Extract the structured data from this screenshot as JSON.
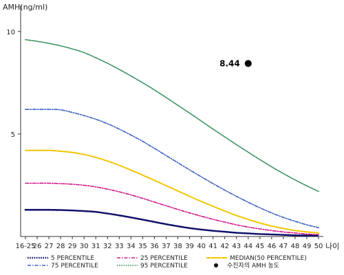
{
  "chart_data": {
    "type": "line",
    "ylabel": "AMH(ng/ml)",
    "xlabel": "나이",
    "x_categories": [
      "16-25",
      "26",
      "27",
      "28",
      "29",
      "30",
      "31",
      "32",
      "33",
      "34",
      "35",
      "36",
      "37",
      "38",
      "39",
      "40",
      "41",
      "42",
      "43",
      "44",
      "45",
      "46",
      "47",
      "48",
      "49",
      "50"
    ],
    "yticks": [
      5,
      10
    ],
    "ylim": [
      0,
      11
    ],
    "grid": false,
    "series": [
      {
        "name": "5 PERCENTILE",
        "color": "#10106a",
        "style": "dotted",
        "width": 2.6,
        "values": [
          1.3,
          1.3,
          1.3,
          1.29,
          1.27,
          1.24,
          1.2,
          1.12,
          1.03,
          0.93,
          0.82,
          0.71,
          0.6,
          0.5,
          0.41,
          0.34,
          0.28,
          0.23,
          0.18,
          0.15,
          0.12,
          0.1,
          0.08,
          0.06,
          0.05,
          0.04
        ]
      },
      {
        "name": "25 PERCENTILE",
        "color": "#d0168a",
        "style": "dashdot",
        "width": 1.6,
        "values": [
          2.6,
          2.6,
          2.6,
          2.58,
          2.55,
          2.5,
          2.42,
          2.31,
          2.18,
          2.03,
          1.86,
          1.68,
          1.5,
          1.32,
          1.15,
          0.99,
          0.84,
          0.7,
          0.57,
          0.46,
          0.37,
          0.29,
          0.22,
          0.17,
          0.12,
          0.09
        ]
      },
      {
        "name": "MEDIAN(50 PERCENTILE)",
        "color": "#f2c500",
        "style": "solid",
        "width": 2,
        "values": [
          4.2,
          4.2,
          4.2,
          4.16,
          4.1,
          4.0,
          3.86,
          3.68,
          3.47,
          3.24,
          2.99,
          2.74,
          2.48,
          2.22,
          1.96,
          1.71,
          1.47,
          1.24,
          1.02,
          0.83,
          0.66,
          0.51,
          0.39,
          0.29,
          0.22,
          0.17
        ]
      },
      {
        "name": "75 PERCENTILE",
        "color": "#3a5fc4",
        "style": "dashdot",
        "width": 1.6,
        "values": [
          6.2,
          6.2,
          6.2,
          6.18,
          6.05,
          5.9,
          5.72,
          5.5,
          5.24,
          4.95,
          4.64,
          4.3,
          3.95,
          3.6,
          3.25,
          2.91,
          2.58,
          2.26,
          1.96,
          1.67,
          1.4,
          1.15,
          0.93,
          0.74,
          0.57,
          0.43
        ]
      },
      {
        "name": "95 PERCENTILE",
        "color": "#2e8b57",
        "style": "dotted",
        "width": 1.6,
        "values": [
          9.6,
          9.52,
          9.42,
          9.3,
          9.15,
          8.97,
          8.72,
          8.45,
          8.15,
          7.83,
          7.5,
          7.15,
          6.78,
          6.4,
          6.02,
          5.63,
          5.24,
          4.86,
          4.48,
          4.11,
          3.75,
          3.4,
          3.07,
          2.76,
          2.47,
          2.2
        ]
      }
    ],
    "highlight_point": {
      "label": "8.44",
      "x": "44",
      "y": 8.44,
      "color": "#000000"
    },
    "legend": {
      "placement": "bottom",
      "marker_label": "수진자의 AMH 농도"
    }
  }
}
